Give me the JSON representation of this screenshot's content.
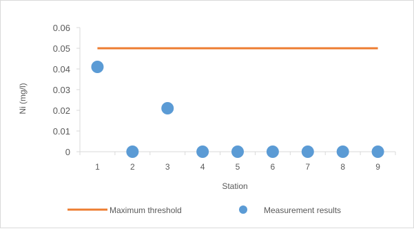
{
  "chart_data": {
    "type": "scatter",
    "xlabel": "Station",
    "ylabel": "Ni (mg/l)",
    "x_ticks": [
      "1",
      "2",
      "3",
      "4",
      "5",
      "6",
      "7",
      "8",
      "9"
    ],
    "y_ticks": [
      "0",
      "0.01",
      "0.02",
      "0.03",
      "0.04",
      "0.05",
      "0.06"
    ],
    "ylim": [
      0,
      0.06
    ],
    "xlim": [
      1,
      9
    ],
    "grid": false,
    "legend_position": "bottom",
    "series": [
      {
        "name": "Maximum threshold",
        "type": "line",
        "color": "#ed7d31",
        "x": [
          1,
          2,
          3,
          4,
          5,
          6,
          7,
          8,
          9
        ],
        "y": [
          0.05,
          0.05,
          0.05,
          0.05,
          0.05,
          0.05,
          0.05,
          0.05,
          0.05
        ]
      },
      {
        "name": "Measurement results",
        "type": "scatter",
        "color": "#5b9bd5",
        "x": [
          1,
          2,
          3,
          4,
          5,
          6,
          7,
          8,
          9
        ],
        "y": [
          0.041,
          0,
          0.021,
          0,
          0,
          0,
          0,
          0,
          0
        ]
      }
    ]
  }
}
